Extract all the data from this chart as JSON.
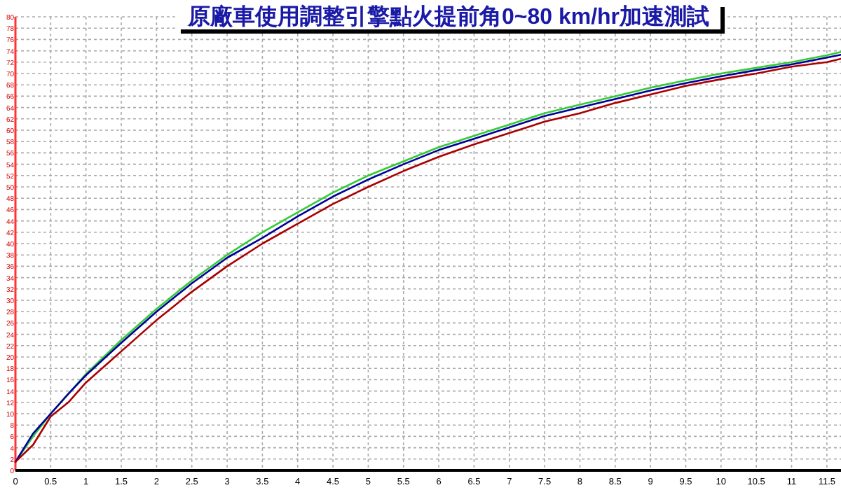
{
  "chart_data": {
    "type": "line",
    "title": "原廠車使用調整引擎點火提前角0~80 km/hr加速測試",
    "x": [
      0,
      0.25,
      0.5,
      0.75,
      1,
      1.5,
      2,
      2.5,
      3,
      3.5,
      4,
      4.5,
      5,
      5.5,
      6,
      6.5,
      7,
      7.5,
      8,
      8.5,
      9,
      9.5,
      10,
      10.5,
      11,
      11.5,
      11.7
    ],
    "series": [
      {
        "color": "#33cc33",
        "values": [
          1.5,
          6,
          10,
          13.5,
          17,
          23,
          28.5,
          33.5,
          38,
          42,
          45.5,
          49,
          52,
          54.5,
          57,
          59,
          61,
          63,
          64.5,
          66,
          67.5,
          68.8,
          70,
          71,
          72,
          73.2,
          73.8
        ]
      },
      {
        "color": "#000099",
        "values": [
          1.5,
          6.5,
          10,
          13.5,
          16.8,
          22.5,
          28,
          33,
          37.5,
          41,
          44.8,
          48.3,
          51.3,
          54,
          56.5,
          58.5,
          60.5,
          62.5,
          64,
          65.5,
          67,
          68.3,
          69.5,
          70.6,
          71.6,
          72.8,
          73.3
        ]
      },
      {
        "color": "#aa0000",
        "values": [
          1.5,
          4.5,
          9.5,
          12,
          15.5,
          21,
          26.5,
          31.5,
          36,
          40,
          43.5,
          47,
          50,
          52.8,
          55.3,
          57.5,
          59.5,
          61.5,
          63,
          64.8,
          66.3,
          67.8,
          69,
          70,
          71.2,
          72,
          72.6
        ]
      }
    ],
    "xlim": [
      0,
      11.7
    ],
    "ylim": [
      0,
      80
    ],
    "xticks": [
      0,
      0.5,
      1,
      1.5,
      2,
      2.5,
      3,
      3.5,
      4,
      4.5,
      5,
      5.5,
      6,
      6.5,
      7,
      7.5,
      8,
      8.5,
      9,
      9.5,
      10,
      10.5,
      11,
      11.5
    ],
    "yticks": [
      0,
      2,
      4,
      6,
      8,
      10,
      12,
      14,
      16,
      18,
      20,
      22,
      24,
      26,
      28,
      30,
      32,
      34,
      36,
      38,
      40,
      42,
      44,
      46,
      48,
      50,
      52,
      54,
      56,
      58,
      60,
      62,
      64,
      66,
      68,
      70,
      72,
      74,
      76,
      78,
      80
    ],
    "grid": true,
    "marker": "none",
    "line_style": "solid"
  }
}
